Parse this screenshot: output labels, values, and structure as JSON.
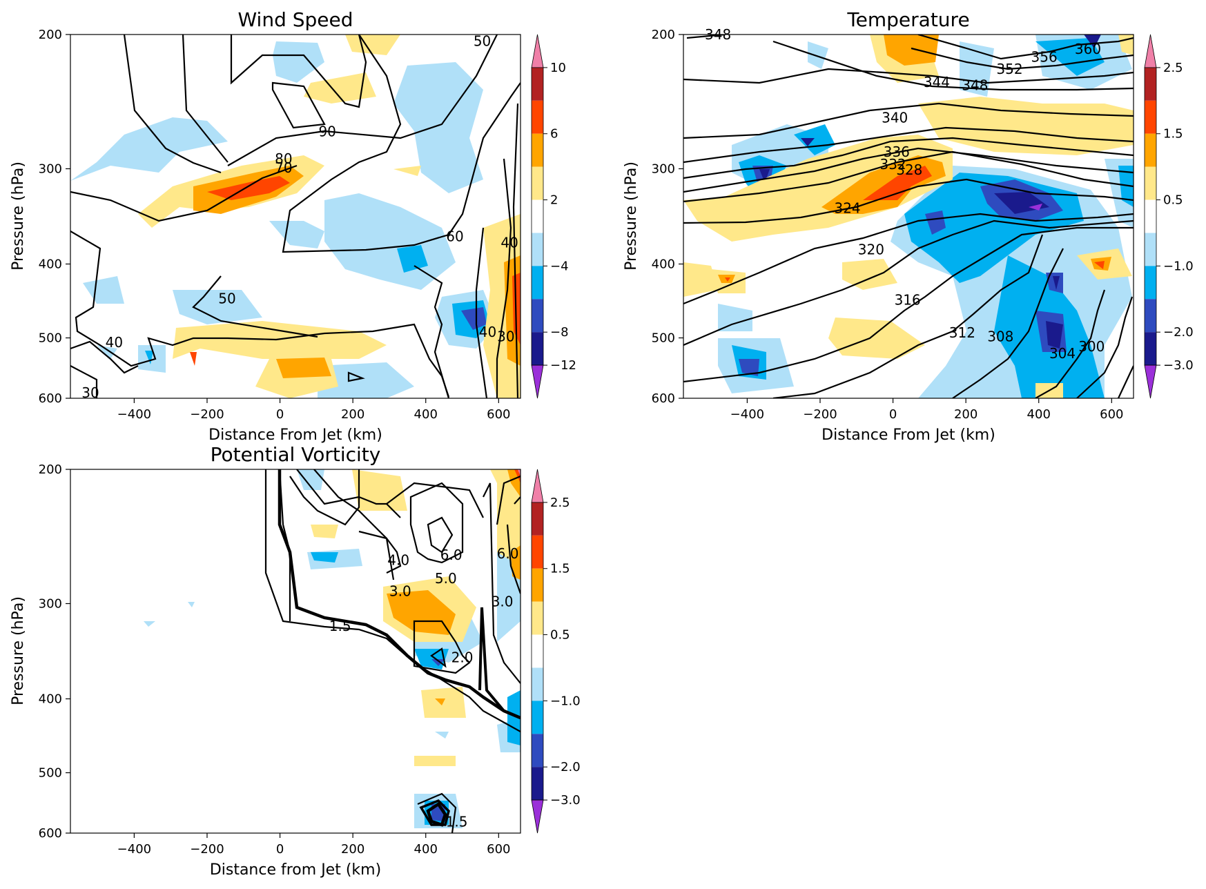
{
  "colorbar_palette": [
    "#9b30d9",
    "#1a1a8c",
    "#2e4bbf",
    "#00b0f0",
    "#b0e0f8",
    "#ffffff",
    "#ffe88a",
    "#ffa500",
    "#ff4500",
    "#b22222",
    "#f080a8"
  ],
  "chart_data": [
    {
      "type": "contour",
      "title": "Wind Speed",
      "xlabel": "Distance From Jet (km)",
      "ylabel": "Pressure (hPa)",
      "xlim": [
        -575,
        660
      ],
      "ylim": [
        600,
        200
      ],
      "yscale": "log",
      "xticks": [
        -400,
        -200,
        0,
        200,
        400,
        600
      ],
      "yticks": [
        200,
        300,
        400,
        500,
        600
      ],
      "colorbar": {
        "ticks": [
          "10",
          "6",
          "2",
          "−4",
          "−8",
          "−12"
        ],
        "extend": "both"
      },
      "contour_labels": [
        {
          "text": "50",
          "x": 555,
          "y": 204
        },
        {
          "text": "90",
          "x": 130,
          "y": 268
        },
        {
          "text": "80",
          "x": 10,
          "y": 291
        },
        {
          "text": "70",
          "x": 10,
          "y": 299
        },
        {
          "text": "60",
          "x": 480,
          "y": 368
        },
        {
          "text": "40",
          "x": 630,
          "y": 375
        },
        {
          "text": "50",
          "x": -145,
          "y": 444
        },
        {
          "text": "40",
          "x": -455,
          "y": 507
        },
        {
          "text": "40",
          "x": 570,
          "y": 491
        },
        {
          "text": "30",
          "x": 620,
          "y": 498
        },
        {
          "text": "30",
          "x": -520,
          "y": 590
        }
      ]
    },
    {
      "type": "contour",
      "title": "Temperature",
      "xlabel": "Distance From Jet (km)",
      "ylabel": "Pressure (hPa)",
      "xlim": [
        -575,
        660
      ],
      "ylim": [
        600,
        200
      ],
      "yscale": "log",
      "xticks": [
        -400,
        -200,
        0,
        200,
        400,
        600
      ],
      "yticks": [
        200,
        300,
        400,
        500,
        600
      ],
      "colorbar": {
        "ticks": [
          "2.5",
          "1.5",
          "0.5",
          "−1.0",
          "−2.0",
          "−3.0"
        ],
        "extend": "both"
      },
      "contour_labels": [
        {
          "text": "348",
          "x": -480,
          "y": 200
        },
        {
          "text": "360",
          "x": 535,
          "y": 209
        },
        {
          "text": "356",
          "x": 415,
          "y": 214
        },
        {
          "text": "352",
          "x": 320,
          "y": 222
        },
        {
          "text": "348",
          "x": 225,
          "y": 233
        },
        {
          "text": "344",
          "x": 120,
          "y": 231
        },
        {
          "text": "340",
          "x": 5,
          "y": 257
        },
        {
          "text": "336",
          "x": 10,
          "y": 285
        },
        {
          "text": "332",
          "x": 0,
          "y": 296
        },
        {
          "text": "328",
          "x": 45,
          "y": 301
        },
        {
          "text": "324",
          "x": -125,
          "y": 338
        },
        {
          "text": "320",
          "x": -60,
          "y": 383
        },
        {
          "text": "316",
          "x": 40,
          "y": 446
        },
        {
          "text": "312",
          "x": 190,
          "y": 492
        },
        {
          "text": "308",
          "x": 295,
          "y": 498
        },
        {
          "text": "304",
          "x": 465,
          "y": 524
        },
        {
          "text": "300",
          "x": 545,
          "y": 513
        }
      ]
    },
    {
      "type": "contour",
      "title": "Potential Vorticity",
      "xlabel": "Distance from Jet (km)",
      "ylabel": "Pressure (hPa)",
      "xlim": [
        -575,
        660
      ],
      "ylim": [
        600,
        200
      ],
      "yscale": "log",
      "xticks": [
        -400,
        -200,
        0,
        200,
        400,
        600
      ],
      "yticks": [
        200,
        300,
        400,
        500,
        600
      ],
      "colorbar": {
        "ticks": [
          "2.5",
          "1.5",
          "0.5",
          "−1.0",
          "−2.0",
          "−3.0"
        ],
        "extend": "both"
      },
      "contour_labels": [
        {
          "text": "4.0",
          "x": 325,
          "y": 263
        },
        {
          "text": "3.0",
          "x": 330,
          "y": 289
        },
        {
          "text": "6.0",
          "x": 470,
          "y": 259
        },
        {
          "text": "5.0",
          "x": 455,
          "y": 278
        },
        {
          "text": "6.0",
          "x": 625,
          "y": 258
        },
        {
          "text": "3.0",
          "x": 610,
          "y": 298
        },
        {
          "text": "1.5",
          "x": 165,
          "y": 321
        },
        {
          "text": "2.0",
          "x": 500,
          "y": 353
        },
        {
          "text": "1.5",
          "x": 485,
          "y": 580
        }
      ]
    }
  ]
}
